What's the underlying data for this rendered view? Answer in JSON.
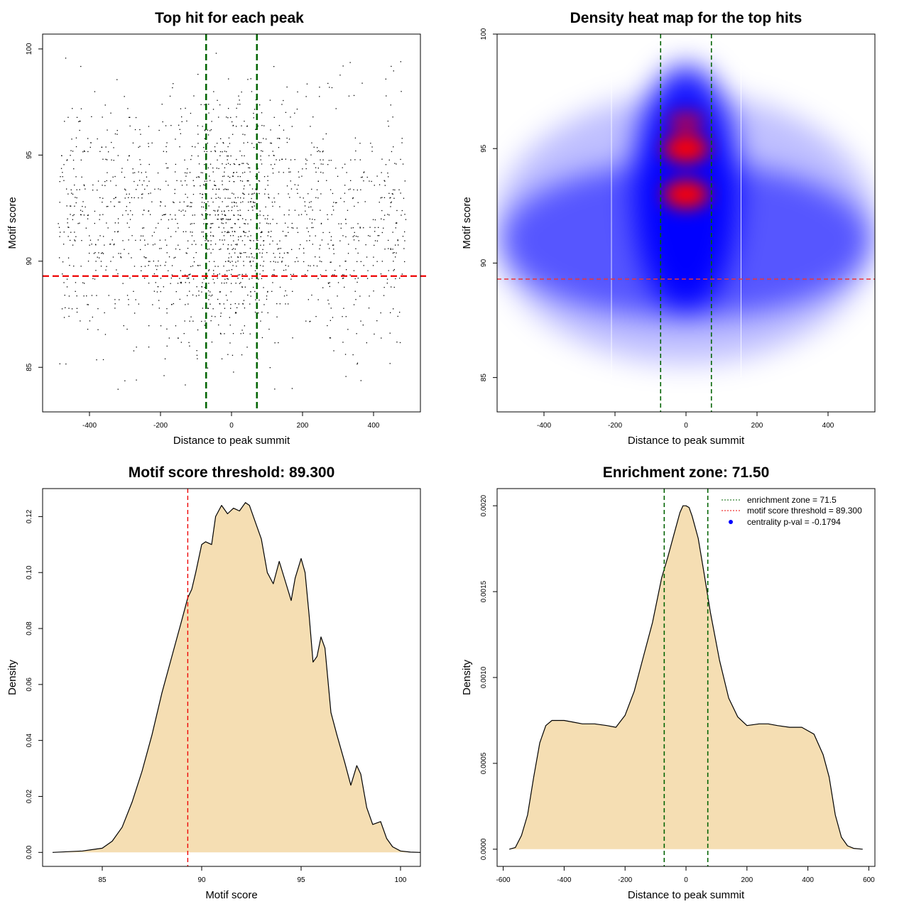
{
  "chart_data": [
    {
      "type": "scatter",
      "title": "Top hit for each peak",
      "xlabel": "Distance to peak summit",
      "ylabel": "Motif score",
      "xlim": [
        -532,
        532
      ],
      "ylim": [
        82.9,
        100.7
      ],
      "xticks": [
        -400,
        -200,
        0,
        200,
        400
      ],
      "yticks": [
        85,
        90,
        95,
        100
      ],
      "x_range_of_points": [
        -490,
        490
      ],
      "score_levels": [
        84,
        85,
        86,
        87,
        88,
        89,
        90,
        91,
        92,
        93,
        94,
        95,
        96,
        97,
        98,
        99,
        100
      ],
      "enrichment_zone": 71.5,
      "score_threshold": 89.3,
      "colors": {
        "points": "#000000",
        "zone": "#006400",
        "threshold": "#ee0000"
      }
    },
    {
      "type": "heatmap",
      "title": "Density heat map for the top hits",
      "xlabel": "Distance to peak summit",
      "ylabel": "Motif score",
      "xlim": [
        -532,
        532
      ],
      "ylim": [
        83.5,
        100
      ],
      "xticks": [
        -400,
        -200,
        0,
        200,
        400
      ],
      "yticks": [
        85,
        90,
        95,
        100
      ],
      "hotspots": [
        {
          "x": 0,
          "y": 95,
          "level": "high"
        },
        {
          "x": 0,
          "y": 93,
          "level": "high"
        },
        {
          "x": 0,
          "y": 96.2,
          "level": "medium"
        }
      ],
      "enrichment_zone": 71.5,
      "score_threshold": 89.3,
      "colors": {
        "low": "#ffffff",
        "mid": "#0000ff",
        "high": "#ff0000",
        "zone": "#006400",
        "threshold": "#ee3333"
      }
    },
    {
      "type": "area",
      "title": "Motif score threshold: 89.300",
      "xlabel": "Motif score",
      "ylabel": "Density",
      "xlim": [
        82,
        101
      ],
      "ylim": [
        -0.005,
        0.13
      ],
      "xticks": [
        85,
        90,
        95,
        100
      ],
      "yticks": [
        0.0,
        0.02,
        0.04,
        0.06,
        0.08,
        0.1,
        0.12
      ],
      "ytick_labels": [
        "0.00",
        "0.02",
        "0.04",
        "0.06",
        "0.08",
        "0.10",
        "0.12"
      ],
      "x": [
        82.5,
        84,
        85,
        85.5,
        86,
        86.5,
        87,
        87.5,
        88,
        88.5,
        89,
        89.3,
        89.5,
        89.7,
        90,
        90.2,
        90.5,
        90.7,
        91,
        91.3,
        91.6,
        91.9,
        92.2,
        92.4,
        92.7,
        93,
        93.3,
        93.6,
        93.9,
        94.2,
        94.5,
        94.7,
        95,
        95.2,
        95.4,
        95.6,
        95.8,
        96,
        96.2,
        96.5,
        96.8,
        97.2,
        97.5,
        97.8,
        98,
        98.3,
        98.6,
        99,
        99.3,
        99.6,
        100,
        100.5,
        101
      ],
      "y": [
        0,
        0.0005,
        0.0015,
        0.004,
        0.009,
        0.018,
        0.029,
        0.042,
        0.057,
        0.07,
        0.083,
        0.091,
        0.094,
        0.1,
        0.11,
        0.111,
        0.11,
        0.12,
        0.124,
        0.121,
        0.123,
        0.122,
        0.125,
        0.124,
        0.118,
        0.112,
        0.1,
        0.096,
        0.104,
        0.097,
        0.09,
        0.098,
        0.105,
        0.1,
        0.085,
        0.068,
        0.07,
        0.077,
        0.073,
        0.05,
        0.042,
        0.032,
        0.024,
        0.031,
        0.028,
        0.016,
        0.01,
        0.011,
        0.005,
        0.002,
        0.0005,
        0.0001,
        0
      ],
      "score_threshold": 89.3,
      "colors": {
        "fill": "#f5deb3",
        "line": "#000000",
        "threshold": "#ee0000"
      }
    },
    {
      "type": "area",
      "title": "Enrichment zone: 71.50",
      "xlabel": "Distance to peak summit",
      "ylabel": "Density",
      "xlim": [
        -620,
        620
      ],
      "ylim": [
        -0.0001,
        0.0021
      ],
      "xticks": [
        -600,
        -400,
        -200,
        0,
        200,
        400,
        600
      ],
      "yticks": [
        0,
        0.0005,
        0.001,
        0.0015,
        0.002
      ],
      "ytick_labels": [
        "0.0000",
        "0.0005",
        "0.0010",
        "0.0015",
        "0.0020"
      ],
      "x": [
        -580,
        -560,
        -540,
        -520,
        -500,
        -480,
        -460,
        -440,
        -420,
        -400,
        -370,
        -340,
        -300,
        -260,
        -230,
        -200,
        -170,
        -140,
        -110,
        -80,
        -60,
        -40,
        -20,
        -10,
        0,
        10,
        20,
        40,
        60,
        80,
        110,
        140,
        170,
        200,
        240,
        270,
        300,
        340,
        380,
        420,
        450,
        470,
        490,
        510,
        530,
        550,
        580
      ],
      "y": [
        0,
        1e-05,
        8e-05,
        0.0002,
        0.00042,
        0.00062,
        0.00072,
        0.00075,
        0.00075,
        0.00075,
        0.00074,
        0.00073,
        0.00073,
        0.00072,
        0.00071,
        0.00078,
        0.00092,
        0.00112,
        0.00132,
        0.00158,
        0.0017,
        0.00183,
        0.00196,
        0.002,
        0.002,
        0.00199,
        0.00194,
        0.00181,
        0.0016,
        0.00138,
        0.0011,
        0.00088,
        0.00077,
        0.00072,
        0.00073,
        0.00073,
        0.00072,
        0.00071,
        0.00071,
        0.00067,
        0.00055,
        0.00042,
        0.0002,
        7e-05,
        2e-05,
        5e-06,
        0
      ],
      "enrichment_zone": 71.5,
      "legend": {
        "placement": "top-right",
        "items": [
          {
            "label": "enrichment zone = 71.5",
            "style": "dotted",
            "color": "#006400"
          },
          {
            "label": "motif score threshold = 89.300",
            "style": "dotted",
            "color": "#ee0000"
          },
          {
            "label": "centrality p-val = -0.1794",
            "style": "point",
            "color": "#0000ff"
          }
        ]
      },
      "colors": {
        "fill": "#f5deb3",
        "line": "#000000",
        "zone": "#006400"
      }
    }
  ]
}
